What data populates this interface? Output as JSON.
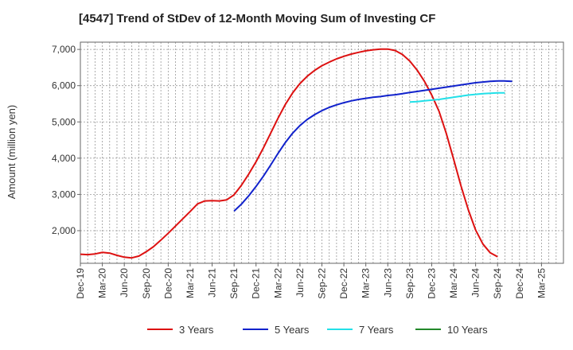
{
  "chart_data": {
    "type": "line",
    "title": "[4547]  Trend of StDev of 12-Month Moving Sum of Investing CF",
    "xlabel": "",
    "ylabel": "Amount (million yen)",
    "ylim": [
      1100,
      7200
    ],
    "yticks": [
      2000,
      3000,
      4000,
      5000,
      6000,
      7000
    ],
    "ytick_labels": [
      "2,000",
      "3,000",
      "4,000",
      "5,000",
      "6,000",
      "7,000"
    ],
    "xticks": [
      "Dec-19",
      "Mar-20",
      "Jun-20",
      "Sep-20",
      "Dec-20",
      "Mar-21",
      "Jun-21",
      "Sep-21",
      "Dec-21",
      "Mar-22",
      "Jun-22",
      "Sep-22",
      "Dec-22",
      "Mar-23",
      "Jun-23",
      "Sep-23",
      "Dec-23",
      "Mar-24",
      "Jun-24",
      "Sep-24",
      "Dec-24",
      "Mar-25"
    ],
    "grid": true,
    "legend_position": "bottom",
    "series": [
      {
        "name": "3 Years",
        "color": "#dd1111",
        "start_month": 0,
        "values": [
          1350,
          1340,
          1360,
          1400,
          1380,
          1320,
          1270,
          1250,
          1300,
          1420,
          1560,
          1740,
          1930,
          2130,
          2330,
          2530,
          2740,
          2820,
          2830,
          2820,
          2850,
          2990,
          3250,
          3560,
          3900,
          4280,
          4690,
          5100,
          5480,
          5800,
          6060,
          6260,
          6420,
          6550,
          6650,
          6740,
          6810,
          6870,
          6920,
          6960,
          6990,
          7010,
          7010,
          6970,
          6860,
          6680,
          6430,
          6120,
          5740,
          5290,
          4680,
          3970,
          3240,
          2580,
          2020,
          1630,
          1390,
          1280
        ]
      },
      {
        "name": "5 Years",
        "color": "#1122cc",
        "start_month": 21,
        "values": [
          2540,
          2730,
          2960,
          3220,
          3500,
          3810,
          4130,
          4430,
          4690,
          4900,
          5070,
          5200,
          5310,
          5400,
          5470,
          5530,
          5580,
          5620,
          5650,
          5680,
          5700,
          5730,
          5750,
          5780,
          5810,
          5840,
          5870,
          5900,
          5930,
          5960,
          5990,
          6020,
          6050,
          6080,
          6100,
          6120,
          6130,
          6130,
          6120
        ]
      },
      {
        "name": "7 Years",
        "color": "#22e0e8",
        "start_month": 45,
        "values": [
          5550,
          5560,
          5580,
          5600,
          5620,
          5650,
          5680,
          5710,
          5740,
          5760,
          5780,
          5790,
          5800,
          5800
        ]
      },
      {
        "name": "10 Years",
        "color": "#22882a",
        "start_month": 0,
        "values": []
      }
    ]
  }
}
